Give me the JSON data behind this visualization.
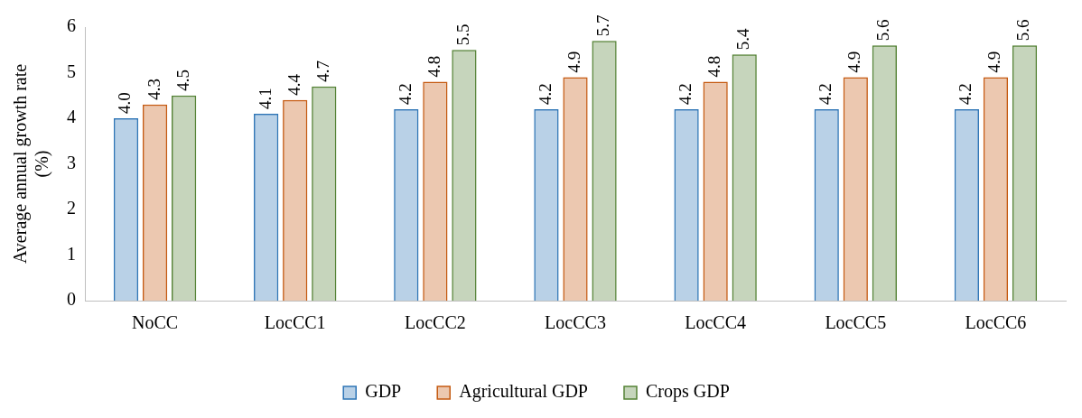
{
  "chart_data": {
    "type": "bar",
    "ylabel": "Average annual growth rate\n(%)",
    "categories": [
      "NoCC",
      "LocCC1",
      "LocCC2",
      "LocCC3",
      "LocCC4",
      "LocCC5",
      "LocCC6"
    ],
    "series": [
      {
        "name": "GDP",
        "color": "#2e75b6",
        "values": [
          4.0,
          4.1,
          4.2,
          4.2,
          4.2,
          4.2,
          4.2
        ],
        "value_labels": [
          "4.0",
          "4.1",
          "4.2",
          "4.2",
          "4.2",
          "4.2",
          "4.2"
        ]
      },
      {
        "name": "Agricultural GDP",
        "color": "#c55a11",
        "values": [
          4.3,
          4.4,
          4.8,
          4.9,
          4.8,
          4.9,
          4.9
        ],
        "value_labels": [
          "4.3",
          "4.4",
          "4.8",
          "4.9",
          "4.8",
          "4.9",
          "4.9"
        ]
      },
      {
        "name": "Crops GDP",
        "color": "#548235",
        "values": [
          4.5,
          4.7,
          5.5,
          5.7,
          5.4,
          5.6,
          5.6
        ],
        "value_labels": [
          "4.5",
          "4.7",
          "5.5",
          "5.7",
          "5.4",
          "5.6",
          "5.6"
        ]
      }
    ],
    "ylim": [
      0,
      6
    ],
    "yticks": [
      0,
      1,
      2,
      3,
      4,
      5,
      6
    ],
    "grid": false,
    "legend": "bottom"
  }
}
